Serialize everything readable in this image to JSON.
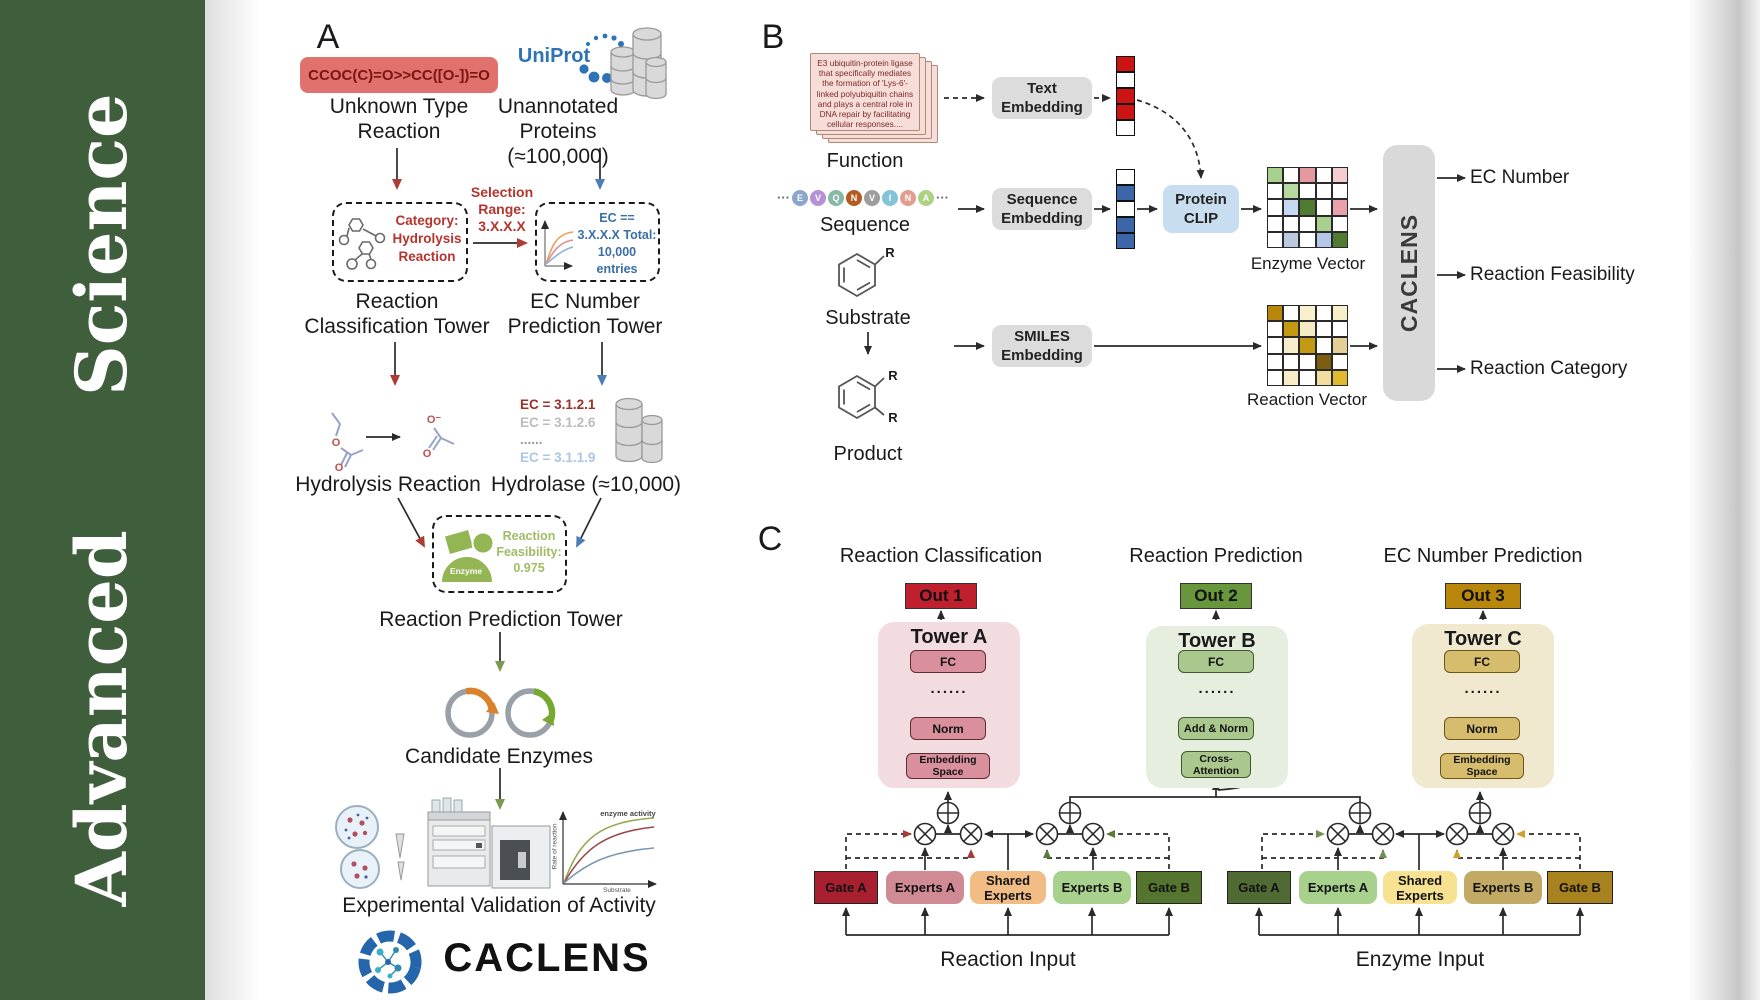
{
  "journal": {
    "name": "Advanced Science"
  },
  "panelA": {
    "label": "A",
    "smiles": "CCOC(C)=O>>CC([O-])=O",
    "unknown_reaction": "Unknown Type Reaction",
    "uniprot": "UniProt",
    "unannotated": "Unannotated Proteins (≈100,000)",
    "selection": "Selection Range: 3.X.X.X",
    "category_box": "Category: Hydrolysis Reaction",
    "ec_box": "EC == 3.X.X.X Total: 10,000 entries",
    "tower1": "Reaction Classification Tower",
    "tower2": "EC Number Prediction Tower",
    "ec_list": [
      {
        "text": "EC = 3.1.2.1",
        "color": "#9c2f26"
      },
      {
        "text": "EC = 3.1.2.6",
        "color": "#bcbcbc"
      },
      {
        "text": "......",
        "color": "#9a9a9a"
      },
      {
        "text": "EC = 3.1.1.9",
        "color": "#aac7e4"
      }
    ],
    "atoms": {
      "o": "O",
      "o_minus": "O⁻"
    },
    "hydrolysis": "Hydrolysis Reaction",
    "hydrolase": "Hydrolase (≈10,000)",
    "enzyme_icon_label": "Enzyme",
    "feasibility": "Reaction Feasibility: 0.975",
    "tower3": "Reaction Prediction Tower",
    "candidates": "Candidate Enzymes",
    "graph": {
      "title": "enzyme activity",
      "ylabel": "Rate of reaction",
      "xlabel": "Substrate"
    },
    "validation": "Experimental Validation of Activity",
    "logo": "CACLENS"
  },
  "panelB": {
    "label": "B",
    "function_card": "E3 ubiquitin-protein ligase that specifically mediates the formation of 'Lys-6'-linked polyubiquitin chains and plays a central role in DNA repair by facilitating cellular responses....",
    "function": "Function",
    "sequence": "Sequence",
    "ellipsis": "···",
    "residues": [
      {
        "letter": "E",
        "color": "#8aa6cb"
      },
      {
        "letter": "V",
        "color": "#b791d6"
      },
      {
        "letter": "Q",
        "color": "#86b8a6"
      },
      {
        "letter": "N",
        "color": "#b25c24"
      },
      {
        "letter": "V",
        "color": "#9d9d9d"
      },
      {
        "letter": "I",
        "color": "#84c3d8"
      },
      {
        "letter": "N",
        "color": "#e29d90"
      },
      {
        "letter": "A",
        "color": "#aed284"
      }
    ],
    "substrate": "Substrate",
    "product": "Product",
    "r_group": "R",
    "text_embedding": "Text Embedding",
    "sequence_embedding": "Sequence Embedding",
    "smiles_embedding": "SMILES Embedding",
    "protein_clip": "Protein CLIP",
    "text_vector": [
      "#cc1414",
      "#ffffff",
      "#cc1414",
      "#cc1414",
      "#ffffff"
    ],
    "sequence_vector": [
      "#ffffff",
      "#3d66a8",
      "#ffffff",
      "#3d66a8",
      "#3d66a8"
    ],
    "enzyme_vector_label": "Enzyme Vector",
    "reaction_vector_label": "Reaction Vector",
    "enzyme_vector": [
      [
        "#a9d18e",
        "#ffffff",
        "#e5989e",
        "#ffffff",
        "#f4ccd2"
      ],
      [
        "#ffffff",
        "#b6d9a1",
        "#ffffff",
        "#ffffff",
        "#ffffff"
      ],
      [
        "#ffffff",
        "#c6d9f0",
        "#4f7b33",
        "#ffffff",
        "#eaa2aa"
      ],
      [
        "#ffffff",
        "#ffffff",
        "#ffffff",
        "#a9d18e",
        "#ffffff"
      ],
      [
        "#ffffff",
        "#bac9dd",
        "#ffffff",
        "#b4c7e7",
        "#4f7b33"
      ]
    ],
    "reaction_vector": [
      [
        "#b8860b",
        "#ffffff",
        "#faf0cc",
        "#ffffff",
        "#f8eec8"
      ],
      [
        "#ffffff",
        "#c49a12",
        "#f6eac2",
        "#ffffff",
        "#ffffff"
      ],
      [
        "#ffffff",
        "#f8edc9",
        "#c49a12",
        "#ffffff",
        "#e4d096"
      ],
      [
        "#ffffff",
        "#ffffff",
        "#ffffff",
        "#7d5e10",
        "#ffffff"
      ],
      [
        "#ffffff",
        "#f8edc9",
        "#ffffff",
        "#f1dd9e",
        "#dfb92e"
      ]
    ],
    "caclens": "CACLENS",
    "outputs": [
      "EC Number",
      "Reaction Feasibility",
      "Reaction Category"
    ]
  },
  "panelC": {
    "label": "C",
    "columns": [
      {
        "title": "Reaction Classification",
        "out": "Out 1",
        "tower": "Tower A",
        "fc": "FC",
        "dots": "......",
        "mid": "Norm",
        "bottom": "Embedding Space"
      },
      {
        "title": "Reaction Prediction",
        "out": "Out 2",
        "tower": "Tower B",
        "fc": "FC",
        "dots": "......",
        "mid": "Add & Norm",
        "bottom": "Cross-Attention"
      },
      {
        "title": "EC Number Prediction",
        "out": "Out 3",
        "tower": "Tower C",
        "fc": "FC",
        "dots": "......",
        "mid": "Norm",
        "bottom": "Embedding Space"
      }
    ],
    "reaction_moe": {
      "gate_a": "Gate A",
      "experts_a": "Experts A",
      "shared": "Shared Experts",
      "experts_b": "Experts B",
      "gate_b": "Gate B",
      "input": "Reaction Input"
    },
    "enzyme_moe": {
      "gate_a": "Gate A",
      "experts_a": "Experts A",
      "shared": "Shared Experts",
      "experts_b": "Experts B",
      "gate_b": "Gate B",
      "input": "Enzyme Input"
    }
  }
}
